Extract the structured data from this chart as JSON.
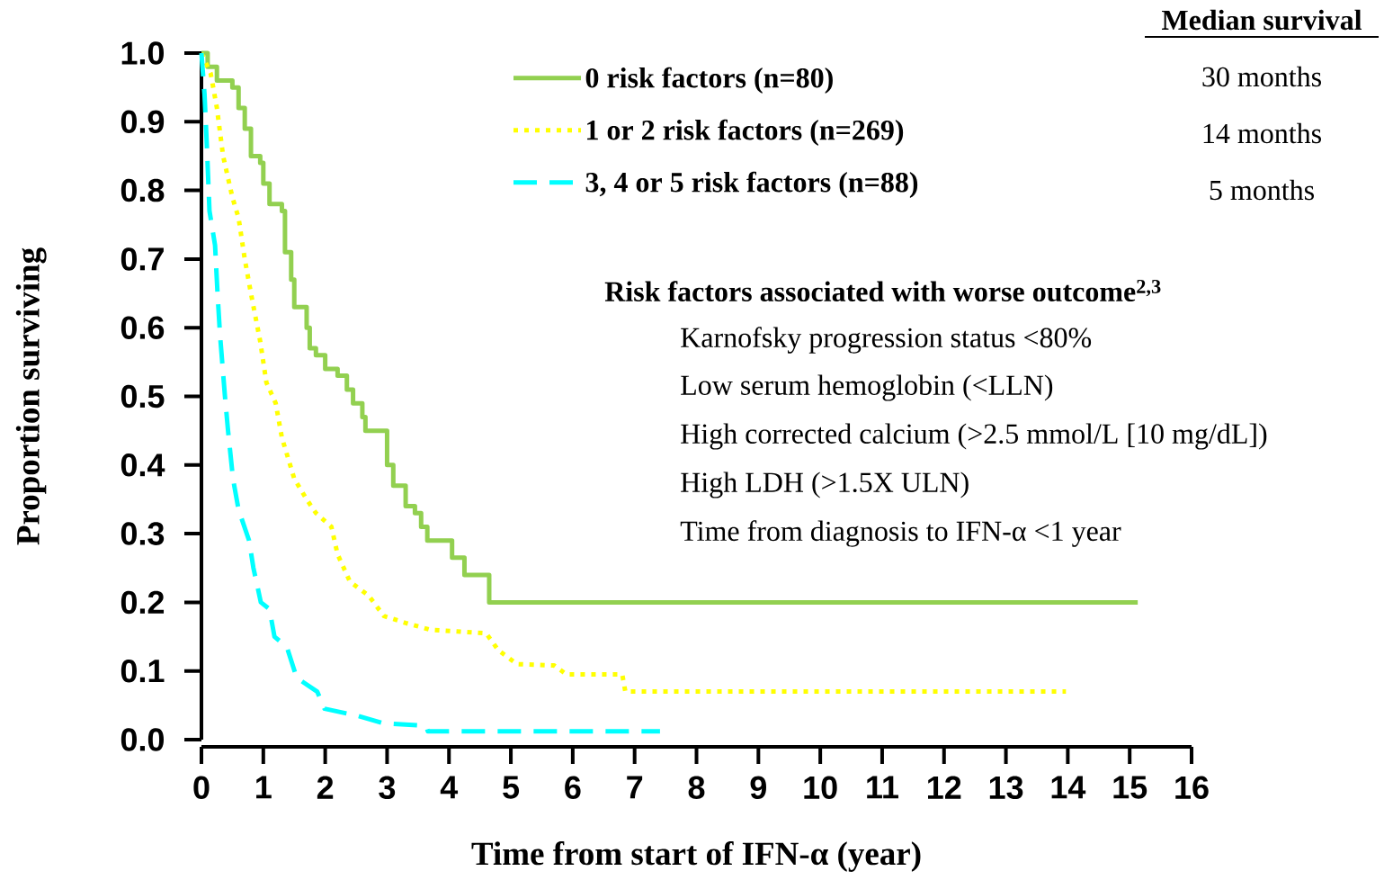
{
  "chart_data": {
    "type": "line",
    "xlabel": "Time from start of IFN-α (year)",
    "ylabel": "Proportion surviving",
    "xlim": [
      0,
      16
    ],
    "ylim": [
      0,
      1.0
    ],
    "xticks": [
      0,
      1,
      2,
      3,
      4,
      5,
      6,
      7,
      8,
      9,
      10,
      11,
      12,
      13,
      14,
      15,
      16
    ],
    "yticks": [
      {
        "value": 0,
        "label": "0.0"
      },
      {
        "value": 0.1,
        "label": "0.1"
      },
      {
        "value": 0.2,
        "label": "0.2"
      },
      {
        "value": 0.3,
        "label": "0.3"
      },
      {
        "value": 0.4,
        "label": "0.4"
      },
      {
        "value": 0.5,
        "label": "0.5"
      },
      {
        "value": 0.6,
        "label": "0.6"
      },
      {
        "value": 0.7,
        "label": "0.7"
      },
      {
        "value": 0.8,
        "label": "0.8"
      },
      {
        "value": 0.9,
        "label": "0.9"
      },
      {
        "value": 1.0,
        "label": "1.0"
      }
    ],
    "legend": "top right",
    "series": [
      {
        "name": "0 risk factors (n=80)",
        "type": "step",
        "color": "#92d050",
        "line_style": "solid",
        "x": [
          0,
          0.1,
          0.25,
          0.5,
          0.6,
          0.7,
          0.8,
          0.95,
          1.0,
          1.1,
          1.3,
          1.35,
          1.45,
          1.5,
          1.7,
          1.75,
          1.85,
          2.0,
          2.2,
          2.35,
          2.45,
          2.6,
          2.65,
          3.0,
          3.1,
          3.3,
          3.45,
          3.55,
          3.65,
          4.05,
          4.25,
          4.65,
          15.13
        ],
        "values": [
          1.0,
          0.98,
          0.96,
          0.95,
          0.92,
          0.89,
          0.85,
          0.84,
          0.81,
          0.78,
          0.77,
          0.71,
          0.67,
          0.63,
          0.6,
          0.57,
          0.56,
          0.54,
          0.53,
          0.51,
          0.49,
          0.47,
          0.45,
          0.4,
          0.37,
          0.34,
          0.33,
          0.31,
          0.29,
          0.265,
          0.24,
          0.2,
          0.2
        ]
      },
      {
        "name": "1 or 2 risk factors (n=269)",
        "color": "#ffff00",
        "line_style": "dotted",
        "x": [
          0,
          0.15,
          0.25,
          0.35,
          0.5,
          0.6,
          0.7,
          0.8,
          0.95,
          1.05,
          1.2,
          1.3,
          1.5,
          1.7,
          1.85,
          2.1,
          2.2,
          2.4,
          2.7,
          2.95,
          3.3,
          3.7,
          4.6,
          4.8,
          5.1,
          5.7,
          5.9,
          6.8,
          6.85,
          13.97
        ],
        "values": [
          1.0,
          0.97,
          0.92,
          0.85,
          0.79,
          0.76,
          0.7,
          0.65,
          0.58,
          0.52,
          0.49,
          0.44,
          0.38,
          0.35,
          0.33,
          0.31,
          0.27,
          0.23,
          0.21,
          0.18,
          0.17,
          0.16,
          0.155,
          0.13,
          0.11,
          0.108,
          0.095,
          0.095,
          0.07,
          0.07
        ]
      },
      {
        "name": "3, 4 or 5 risk factors (n=88)",
        "color": "#00ffff",
        "line_style": "dashed",
        "x": [
          0,
          0.05,
          0.09,
          0.13,
          0.22,
          0.26,
          0.3,
          0.38,
          0.43,
          0.51,
          0.6,
          0.77,
          0.84,
          0.96,
          1.1,
          1.18,
          1.38,
          1.54,
          1.87,
          1.99,
          2.51,
          2.93,
          3.63,
          3.66,
          7.41
        ],
        "values": [
          1.0,
          0.94,
          0.86,
          0.77,
          0.72,
          0.65,
          0.59,
          0.5,
          0.45,
          0.38,
          0.335,
          0.29,
          0.25,
          0.2,
          0.19,
          0.15,
          0.135,
          0.09,
          0.07,
          0.045,
          0.035,
          0.024,
          0.02,
          0.012,
          0.012
        ]
      }
    ],
    "annotations": [
      "Median survival",
      "30 months",
      "14 months",
      "5 months",
      "Risk factors associated with worse outcome$^{2,3}$",
      "Karnofsky progression status <80%",
      "Low serum hemoglobin (<LLN)",
      "High corrected calcium (>2.5 mmol/L [10 mg/dL])",
      "High LDH (>1.5X ULN)",
      "Time from diagnosis to IFN-α <1 year"
    ]
  }
}
